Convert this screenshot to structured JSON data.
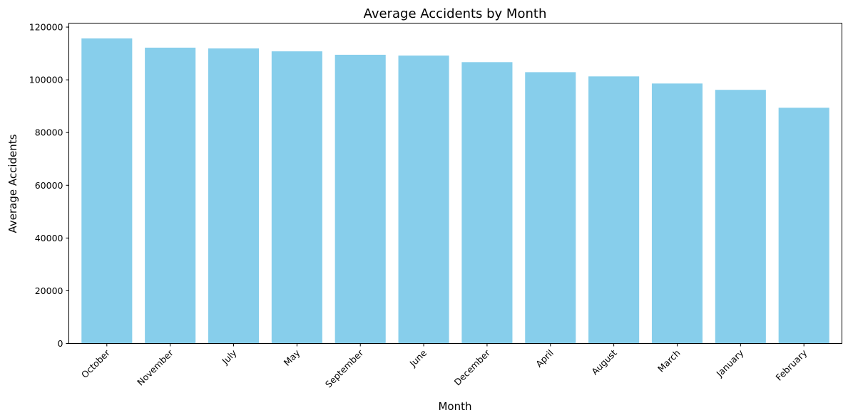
{
  "chart_data": {
    "type": "bar",
    "title": "Average Accidents by Month",
    "xlabel": "Month",
    "ylabel": "Average Accidents",
    "categories": [
      "October",
      "November",
      "July",
      "May",
      "September",
      "June",
      "December",
      "April",
      "August",
      "March",
      "January",
      "February"
    ],
    "values": [
      115700,
      112200,
      111900,
      110800,
      109500,
      109200,
      106700,
      102900,
      101300,
      98600,
      96200,
      89400
    ],
    "yticks": [
      0,
      20000,
      40000,
      60000,
      80000,
      100000,
      120000
    ],
    "ylim": [
      0,
      121500
    ],
    "grid": false,
    "legend": "none",
    "bar_color": "#87CEEB"
  }
}
